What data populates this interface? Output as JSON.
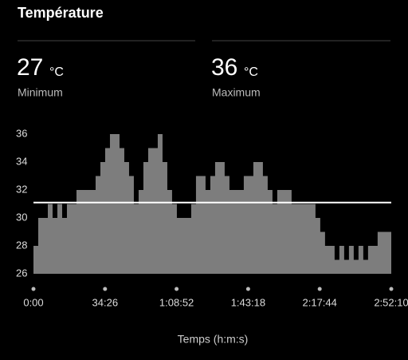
{
  "header": {
    "title": "Température"
  },
  "stats": [
    {
      "value": 27,
      "unit": "°C",
      "label": "Minimum"
    },
    {
      "value": 36,
      "unit": "°C",
      "label": "Maximum"
    }
  ],
  "chart_data": {
    "type": "area",
    "x_label": "Temps (h:m:s)",
    "x": [
      0,
      138,
      276,
      414,
      552,
      690,
      828,
      966,
      1104,
      1242,
      1380,
      1518,
      1656,
      1794,
      1932,
      2070,
      2208,
      2346,
      2484,
      2622,
      2760,
      2898,
      3036,
      3174,
      3312,
      3450,
      3588,
      3726,
      3864,
      4002,
      4140,
      4278,
      4416,
      4554,
      4692,
      4830,
      4968,
      5106,
      5244,
      5382,
      5520,
      5658,
      5796,
      5934,
      6072,
      6210,
      6348,
      6486,
      6624,
      6762,
      6900,
      7038,
      7176,
      7314,
      7452,
      7590,
      7728,
      7866,
      8004,
      8142,
      8280,
      8418,
      8556,
      8694,
      8832,
      8970,
      9108,
      9246,
      9384,
      9522,
      9660,
      9798,
      9936,
      10074,
      10212,
      10330
    ],
    "series": [
      {
        "color": "#7d7d7d",
        "values": [
          28,
          30,
          30,
          31,
          30,
          31,
          30,
          31,
          31,
          32,
          32,
          32,
          32,
          33,
          34,
          35,
          36,
          36,
          35,
          34,
          33,
          31,
          32,
          34,
          35,
          35,
          36,
          34,
          32,
          31,
          30,
          30,
          30,
          31,
          33,
          33,
          32,
          33,
          34,
          34,
          33,
          32,
          32,
          32,
          33,
          33,
          34,
          34,
          33,
          32,
          31,
          32,
          32,
          32,
          31,
          31,
          31,
          31,
          31,
          30,
          29,
          28,
          28,
          27,
          28,
          27,
          28,
          27,
          28,
          27,
          28,
          28,
          29,
          29,
          29,
          29
        ]
      }
    ],
    "reference_line": {
      "value": 31.1,
      "color": "#ffffff"
    },
    "xlim": [
      0,
      10330
    ],
    "xticks": [
      {
        "value": 0,
        "label": "0:00"
      },
      {
        "value": 2066,
        "label": "34:26"
      },
      {
        "value": 4132,
        "label": "1:08:52"
      },
      {
        "value": 6198,
        "label": "1:43:18"
      },
      {
        "value": 8264,
        "label": "2:17:44"
      },
      {
        "value": 10330,
        "label": "2:52:10"
      }
    ],
    "ylim": [
      26,
      36
    ],
    "yticks": [
      26,
      28,
      30,
      32,
      34,
      36
    ]
  }
}
